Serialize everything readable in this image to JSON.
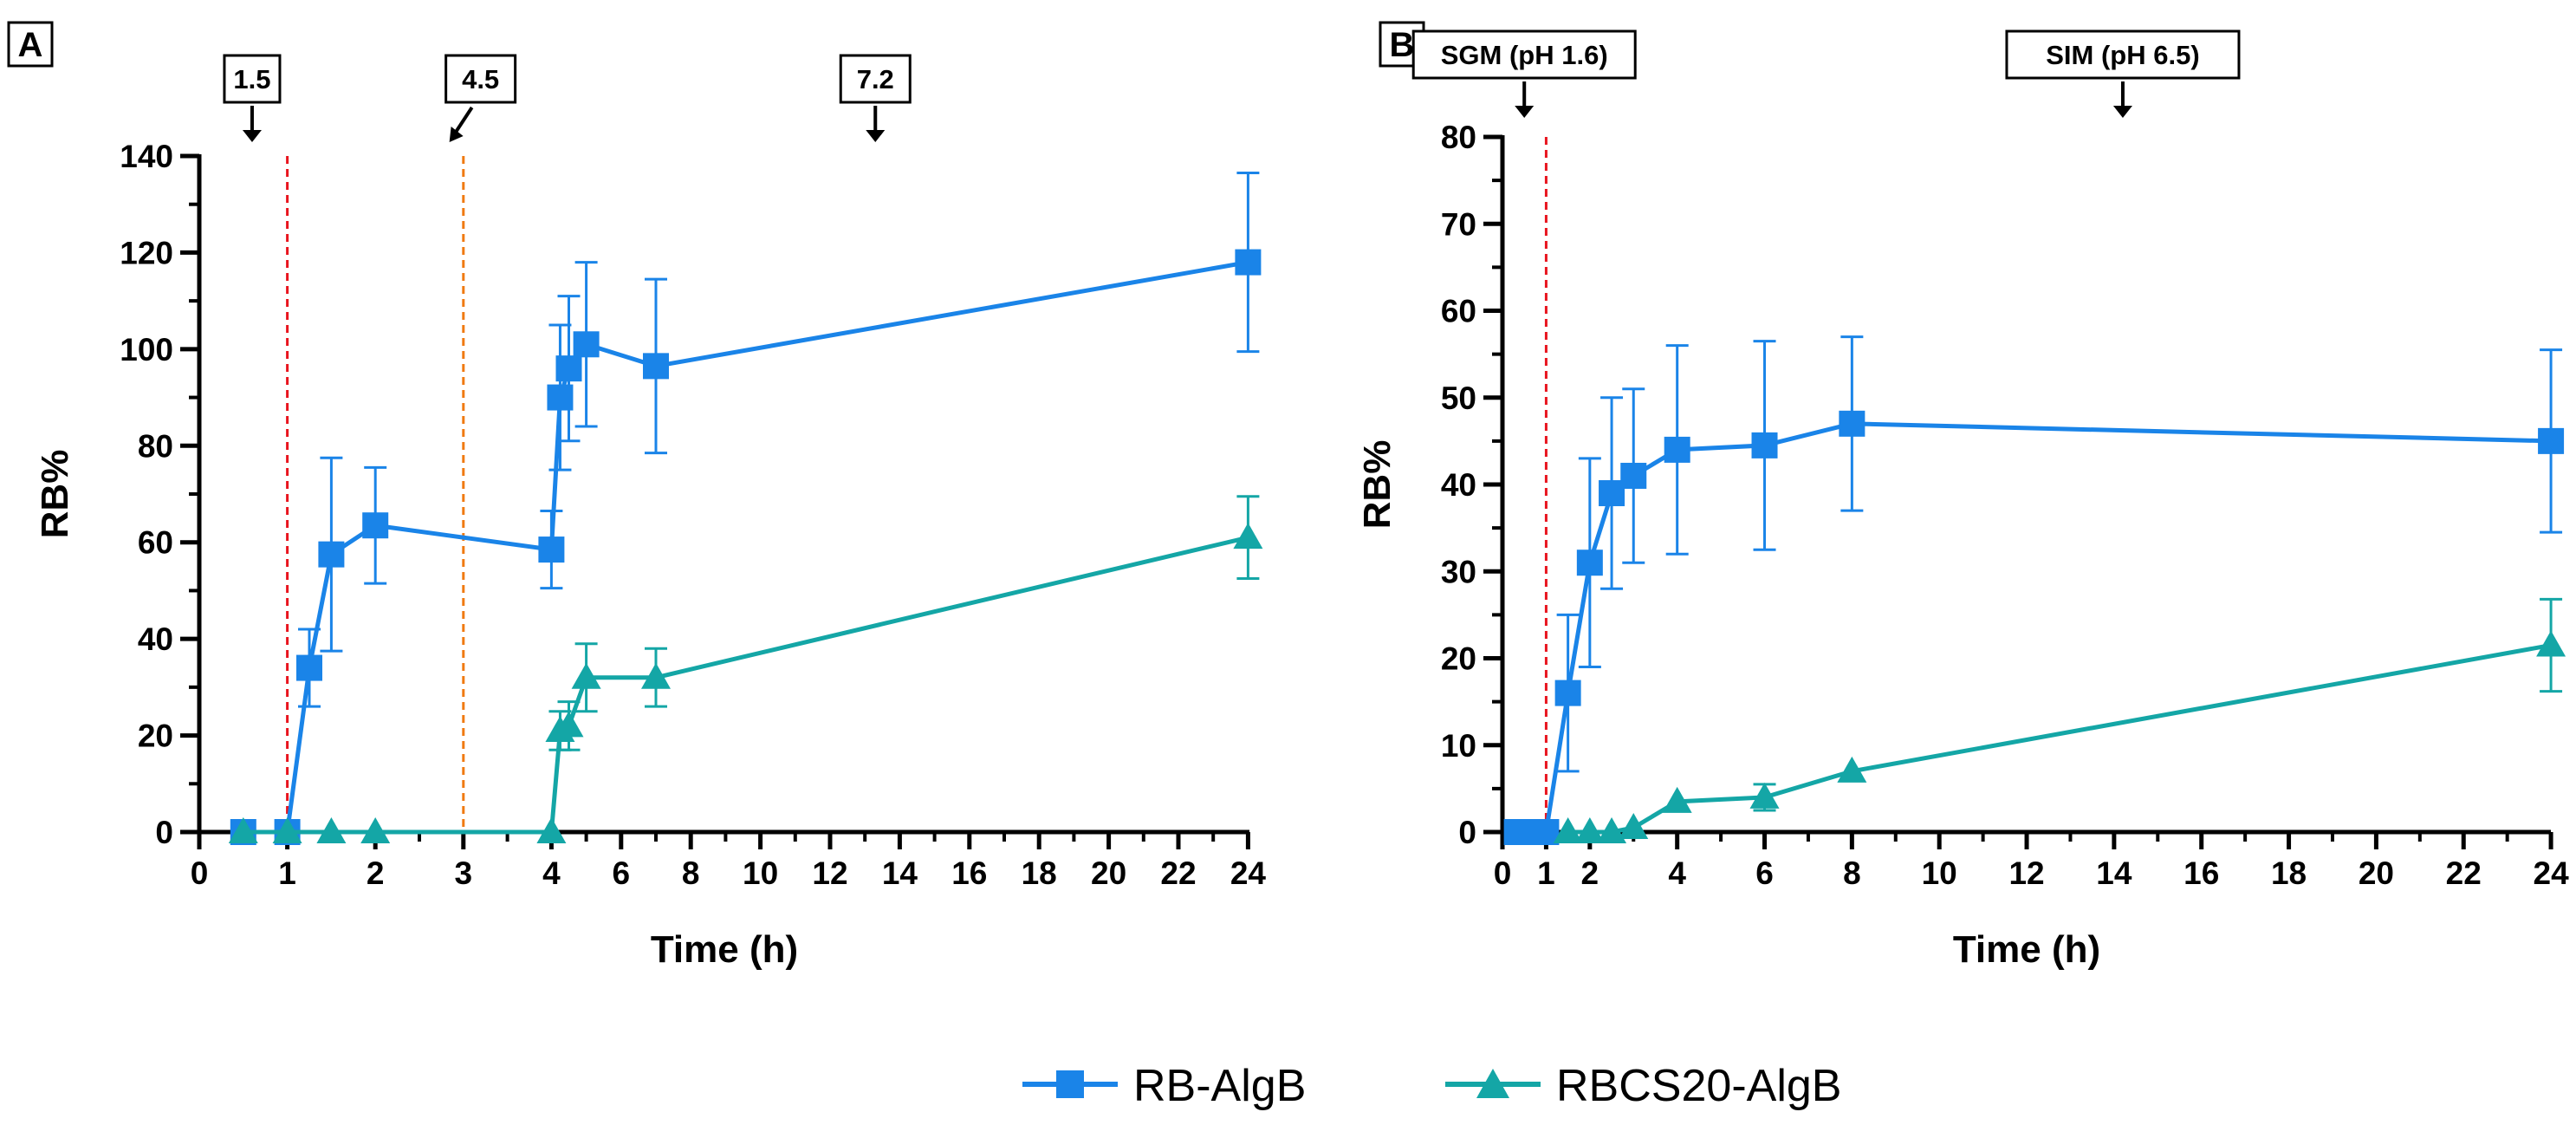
{
  "colors": {
    "rb": "#1a84e8",
    "rbcs": "#14a6a6",
    "red_line": "#e8141e",
    "orange_line": "#f07a12",
    "axis": "#000000"
  },
  "legend": [
    {
      "label": "RB-AlgB",
      "marker": "square",
      "series": "rb"
    },
    {
      "label": "RBCS20-AlgB",
      "marker": "triangle",
      "series": "rbcs"
    }
  ],
  "chart_data": [
    {
      "panel": "A",
      "type": "line",
      "xlabel": "Time (h)",
      "ylabel": "RB%",
      "xlim": [
        0,
        24
      ],
      "ylim": [
        0,
        140
      ],
      "xticks": [
        "0",
        "1",
        "2",
        "3",
        "4",
        "6",
        "8",
        "10",
        "12",
        "14",
        "16",
        "18",
        "20",
        "22",
        "24"
      ],
      "xtick_values": [
        0,
        1,
        2,
        3,
        4,
        6,
        8,
        10,
        12,
        14,
        16,
        18,
        20,
        22,
        24
      ],
      "xbreak_at": 4,
      "yticks": [
        0,
        20,
        40,
        60,
        80,
        100,
        120,
        140
      ],
      "vlines": [
        {
          "x": 1,
          "color": "red"
        },
        {
          "x": 3,
          "color": "orange"
        }
      ],
      "annotations": [
        {
          "text": "1.5",
          "x": 0.6,
          "arrow": "down"
        },
        {
          "text": "4.5",
          "x": 2.9,
          "arrow": "diag"
        },
        {
          "text": "7.2",
          "x": 13.3,
          "arrow": "down"
        }
      ],
      "series": [
        {
          "name": "RB-AlgB",
          "marker": "square",
          "x": [
            0.5,
            1,
            1.25,
            1.5,
            2,
            4,
            4.25,
            4.5,
            5,
            7,
            24
          ],
          "y": [
            0,
            0,
            34,
            57.5,
            63.5,
            58.5,
            90,
            96,
            101,
            96.5,
            118
          ],
          "err": [
            0,
            0,
            8,
            20,
            12,
            8,
            15,
            15,
            17,
            18,
            18.5
          ]
        },
        {
          "name": "RBCS20-AlgB",
          "marker": "triangle",
          "x": [
            0.5,
            1,
            1.5,
            2,
            4,
            4.25,
            4.5,
            5,
            7,
            24
          ],
          "y": [
            0,
            0,
            0,
            0,
            0,
            21,
            22,
            32,
            32,
            61
          ],
          "err": [
            0,
            0,
            0,
            0,
            0,
            4,
            5,
            7,
            6,
            8.5
          ]
        }
      ]
    },
    {
      "panel": "B",
      "type": "line",
      "xlabel": "Time (h)",
      "ylabel": "RB%",
      "xlim": [
        0,
        24
      ],
      "ylim": [
        0,
        80
      ],
      "xticks": [
        "0",
        "1",
        "2",
        "4",
        "6",
        "8",
        "10",
        "12",
        "14",
        "16",
        "18",
        "20",
        "22",
        "24"
      ],
      "xtick_values": [
        0,
        1,
        2,
        4,
        6,
        8,
        10,
        12,
        14,
        16,
        18,
        20,
        22,
        24
      ],
      "yticks": [
        0,
        10,
        20,
        30,
        40,
        50,
        60,
        70,
        80
      ],
      "vlines": [
        {
          "x": 1,
          "color": "red"
        }
      ],
      "annotations": [
        {
          "text": "SGM (pH 1.6)",
          "x": 0.5,
          "arrow": "down"
        },
        {
          "text": "SIM (pH 6.5)",
          "x": 14.2,
          "arrow": "down"
        }
      ],
      "series": [
        {
          "name": "RB-AlgB",
          "marker": "square",
          "x": [
            0.33,
            0.67,
            1,
            1.5,
            2,
            2.5,
            3,
            4,
            6,
            8,
            24
          ],
          "y": [
            0,
            0,
            0,
            16,
            31,
            39,
            41,
            44,
            44.5,
            47,
            45
          ],
          "err": [
            0,
            0,
            0,
            9,
            12,
            11,
            10,
            12,
            12,
            10,
            10.5
          ]
        },
        {
          "name": "RBCS20-AlgB",
          "marker": "triangle",
          "x": [
            1.5,
            2,
            2.5,
            3,
            4,
            6,
            8,
            24
          ],
          "y": [
            0,
            0,
            0,
            0.5,
            3.5,
            4,
            7,
            21.5
          ],
          "err": [
            0,
            0,
            0,
            0,
            0,
            1.5,
            0,
            5.3
          ]
        }
      ]
    }
  ]
}
